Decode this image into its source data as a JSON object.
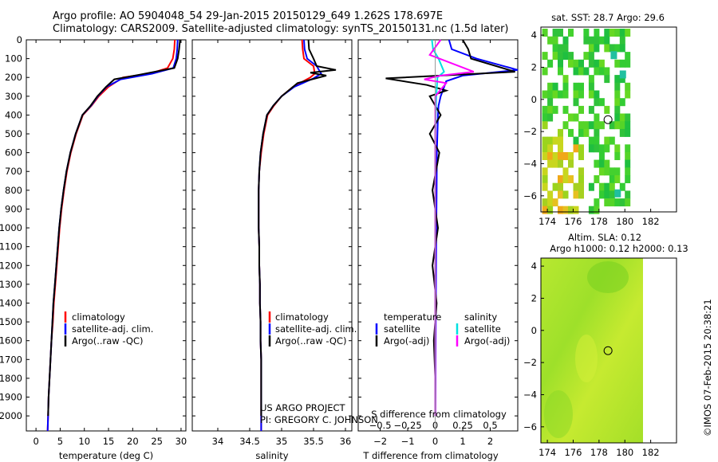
{
  "header": {
    "line1": "Argo profile: AO 5904048_54 29-Jan-2015 20150129_649 1.262S 178.697E",
    "line2": "Climatology: CARS2009. Satellite-adjusted climatology: synTS_20150131.nc (1.5d later)"
  },
  "footer": {
    "project": "US ARGO PROJECT",
    "pi": "PI: GREGORY C. JOHNSON",
    "stamp": "©IMOS 07-Feb-2015 20:38:21"
  },
  "colors": {
    "climatology": "#ff0000",
    "satellite": "#0000ff",
    "argo": "#000000",
    "sat_salinity": "#00e0e0",
    "argo_salinity": "#ff00ff"
  },
  "chart_data": [
    {
      "id": "temperature",
      "type": "line",
      "xlabel": "temperature (deg C)",
      "ylabel": "",
      "xlim": [
        -2,
        31
      ],
      "ylim": [
        2080,
        0
      ],
      "xticks": [
        0,
        5,
        10,
        15,
        20,
        25,
        30
      ],
      "xticklabels": [
        "0",
        "5",
        "10",
        "15",
        "20",
        "25",
        "30"
      ],
      "yticks": [
        0,
        100,
        200,
        300,
        400,
        500,
        600,
        700,
        800,
        900,
        1000,
        1100,
        1200,
        1300,
        1400,
        1500,
        1600,
        1700,
        1800,
        1900,
        2000
      ],
      "legend": {
        "placement": "lower-middle",
        "entries": [
          "climatology",
          "satellite-adj. clim.",
          "Argo(..raw -QC)"
        ]
      },
      "series": [
        {
          "name": "climatology",
          "color": "#ff0000",
          "x": [
            28.7,
            28.6,
            28.3,
            27.2,
            23.5,
            18.0,
            15.0,
            13.0,
            11.5,
            9.7,
            8.3,
            7.2,
            6.4,
            5.8,
            5.3,
            4.9,
            4.6,
            4.3,
            4.0,
            3.7,
            3.5,
            3.2,
            3.0,
            2.8,
            2.6,
            2.5,
            2.4
          ],
          "y": [
            0,
            50,
            100,
            150,
            180,
            200,
            250,
            300,
            350,
            400,
            500,
            600,
            700,
            800,
            900,
            1000,
            1100,
            1200,
            1300,
            1400,
            1500,
            1600,
            1700,
            1800,
            1900,
            2000,
            2080
          ]
        },
        {
          "name": "satellite-adj. clim.",
          "color": "#0000ff",
          "x": [
            29.3,
            29.2,
            29.0,
            28.4,
            24.0,
            17.5,
            14.6,
            12.8,
            11.4,
            9.6,
            8.2,
            7.1,
            6.3,
            5.7,
            5.2,
            4.8,
            4.5,
            4.2,
            3.9,
            3.6,
            3.4,
            3.2,
            3.0,
            2.8,
            2.6,
            2.5,
            2.4
          ],
          "y": [
            0,
            50,
            100,
            150,
            180,
            210,
            250,
            300,
            350,
            400,
            500,
            600,
            700,
            800,
            900,
            1000,
            1100,
            1200,
            1300,
            1400,
            1500,
            1600,
            1700,
            1800,
            1900,
            2000,
            2080
          ]
        },
        {
          "name": "Argo(..raw -QC)",
          "color": "#000000",
          "x": [
            29.8,
            29.6,
            29.3,
            28.6,
            21.5,
            16.2,
            14.5,
            12.7,
            11.3,
            9.6,
            8.2,
            7.1,
            6.3,
            5.7,
            5.2,
            4.8,
            4.5,
            4.2,
            3.9,
            3.6,
            3.4,
            3.2,
            3.0,
            2.8,
            2.6,
            2.5
          ],
          "y": [
            0,
            50,
            100,
            150,
            185,
            210,
            250,
            300,
            350,
            400,
            500,
            600,
            700,
            800,
            900,
            1000,
            1100,
            1200,
            1300,
            1400,
            1500,
            1600,
            1700,
            1800,
            1900,
            2000
          ]
        }
      ]
    },
    {
      "id": "salinity",
      "type": "line",
      "xlabel": "salinity",
      "ylabel": "",
      "xlim": [
        33.6,
        36.1
      ],
      "ylim": [
        2080,
        0
      ],
      "xticks": [
        34,
        34.5,
        35,
        35.5,
        36
      ],
      "xticklabels": [
        "34",
        "34.5",
        "35",
        "35.5",
        "36"
      ],
      "legend": {
        "placement": "lower-right",
        "entries": [
          "climatology",
          "satellite-adj. clim.",
          "Argo(..raw -QC)"
        ]
      },
      "series": [
        {
          "name": "climatology",
          "color": "#ff0000",
          "x": [
            35.32,
            35.33,
            35.35,
            35.5,
            35.52,
            35.45,
            35.18,
            35.0,
            34.88,
            34.78,
            34.72,
            34.68,
            34.65,
            34.64,
            34.64,
            34.64,
            34.65,
            34.65,
            34.66,
            34.66,
            34.67,
            34.67,
            34.68,
            34.68,
            34.68,
            34.68,
            34.68
          ],
          "y": [
            0,
            50,
            100,
            140,
            180,
            200,
            250,
            300,
            350,
            400,
            500,
            600,
            700,
            800,
            900,
            1000,
            1100,
            1200,
            1300,
            1400,
            1500,
            1600,
            1700,
            1800,
            1900,
            2000,
            2080
          ]
        },
        {
          "name": "satellite-adj. clim.",
          "color": "#0000ff",
          "x": [
            35.35,
            35.36,
            35.4,
            35.55,
            35.62,
            35.5,
            35.2,
            35.0,
            34.87,
            34.77,
            34.71,
            34.67,
            34.65,
            34.64,
            34.64,
            34.64,
            34.65,
            34.65,
            34.66,
            34.66,
            34.67,
            34.67,
            34.68,
            34.68,
            34.68,
            34.68,
            34.68
          ],
          "y": [
            0,
            50,
            100,
            140,
            180,
            205,
            250,
            300,
            350,
            400,
            500,
            600,
            700,
            800,
            900,
            1000,
            1100,
            1200,
            1300,
            1400,
            1500,
            1600,
            1700,
            1800,
            1900,
            2000,
            2080
          ]
        },
        {
          "name": "Argo(..raw -QC)",
          "color": "#000000",
          "x": [
            35.42,
            35.43,
            35.5,
            35.55,
            35.85,
            35.45,
            35.7,
            35.25,
            35.0,
            34.87,
            34.77,
            34.71,
            34.67,
            34.65,
            34.64,
            34.64,
            34.64,
            34.65,
            34.65,
            34.66,
            34.66,
            34.67,
            34.67,
            34.68,
            34.68,
            34.68,
            34.68
          ],
          "y": [
            0,
            50,
            100,
            140,
            160,
            175,
            190,
            230,
            300,
            350,
            400,
            500,
            600,
            700,
            800,
            900,
            1000,
            1100,
            1200,
            1300,
            1400,
            1500,
            1600,
            1700,
            1800,
            1900,
            2000
          ]
        }
      ]
    },
    {
      "id": "difference",
      "type": "line",
      "xlabel": "T difference from climatology",
      "xlabel_top": "S difference from climatology",
      "xlim": [
        -2.8,
        3.0
      ],
      "ylim": [
        2080,
        0
      ],
      "xticks": [
        -2,
        -1,
        0,
        1,
        2
      ],
      "xticklabels": [
        "−2",
        "−1",
        "0",
        "1",
        "2"
      ],
      "xticks_top": [
        -0.5,
        -0.25,
        0,
        0.25,
        0.5
      ],
      "xticklabels_top": [
        "−0.5",
        "−0.25",
        "0",
        "0.25",
        "0.5"
      ],
      "s_scale": 0.25,
      "legend": {
        "placement": "middle",
        "temperature_title": "temperature",
        "salinity_title": "salinity",
        "entries": [
          "satellite",
          "Argo(-adj)",
          "satellite",
          "Argo(-adj)"
        ]
      },
      "series": [
        {
          "name": "temperature satellite",
          "color": "#0000ff",
          "units": "T",
          "x": [
            0.5,
            0.6,
            1.5,
            3.0,
            1.0,
            0.4,
            0.3,
            0.2,
            0.12,
            0.1,
            0.08,
            0.06,
            0.05,
            0.04,
            0.03,
            0.02,
            0.01,
            0.0
          ],
          "y": [
            0,
            50,
            100,
            160,
            190,
            220,
            260,
            300,
            350,
            400,
            500,
            600,
            800,
            1000,
            1200,
            1500,
            1800,
            2000
          ]
        },
        {
          "name": "temperature Argo(-adj)",
          "color": "#000000",
          "units": "T",
          "x": [
            1.0,
            1.2,
            1.3,
            2.9,
            -1.8,
            -0.3,
            0.4,
            -0.2,
            0.2,
            -0.2,
            0.15,
            -0.1,
            0.1,
            -0.1,
            0.05,
            -0.05,
            0.0,
            0.0
          ],
          "y": [
            0,
            50,
            100,
            170,
            205,
            240,
            270,
            300,
            400,
            500,
            600,
            800,
            1000,
            1200,
            1400,
            1600,
            1800,
            2000
          ]
        },
        {
          "name": "salinity satellite",
          "color": "#00e0e0",
          "units": "S",
          "x": [
            -0.03,
            -0.02,
            0.03,
            0.08,
            0.02,
            0.01,
            0.0,
            0.0,
            0.0,
            0.0
          ],
          "y": [
            0,
            50,
            100,
            170,
            200,
            300,
            500,
            800,
            1200,
            2000
          ]
        },
        {
          "name": "salinity Argo(-adj)",
          "color": "#ff00ff",
          "units": "S",
          "x": [
            0.05,
            -0.05,
            0.35,
            0.05,
            -0.1,
            0.1,
            0.0,
            0.0,
            0.0
          ],
          "y": [
            0,
            80,
            170,
            190,
            210,
            230,
            300,
            600,
            2000
          ]
        }
      ]
    },
    {
      "id": "sst-map",
      "type": "heatmap",
      "title": "sat. SST: 28.7 Argo: 29.6",
      "xlim": [
        173.5,
        184
      ],
      "ylim": [
        -7,
        4.5
      ],
      "xticks": [
        174,
        176,
        178,
        180,
        182
      ],
      "xticklabels": [
        "174",
        "176",
        "178",
        "180",
        "182"
      ],
      "yticks": [
        4,
        2,
        0,
        -2,
        -4,
        -6
      ],
      "yticklabels": [
        "4",
        "2",
        "0",
        "−2",
        "−4",
        "−6"
      ],
      "float_position": [
        178.697,
        -1.262
      ]
    },
    {
      "id": "sla-map",
      "type": "heatmap",
      "title": "Altim. SLA: 0.12",
      "subtitle": "Argo h1000: 0.12 h2000: 0.13",
      "xlim": [
        173.5,
        184
      ],
      "ylim": [
        -7,
        4.5
      ],
      "xticks": [
        174,
        176,
        178,
        180,
        182
      ],
      "xticklabels": [
        "174",
        "176",
        "178",
        "180",
        "182"
      ],
      "yticks": [
        4,
        2,
        0,
        -2,
        -4,
        -6
      ],
      "yticklabels": [
        "4",
        "2",
        "0",
        "−2",
        "−4",
        "−6"
      ],
      "float_position": [
        178.697,
        -1.262
      ]
    }
  ],
  "depth_axis": {
    "ticklabels": [
      "0",
      "100",
      "200",
      "300",
      "400",
      "500",
      "600",
      "700",
      "800",
      "900",
      "1000",
      "1100",
      "1200",
      "1300",
      "1400",
      "1500",
      "1600",
      "1700",
      "1800",
      "1900",
      "2000"
    ]
  }
}
